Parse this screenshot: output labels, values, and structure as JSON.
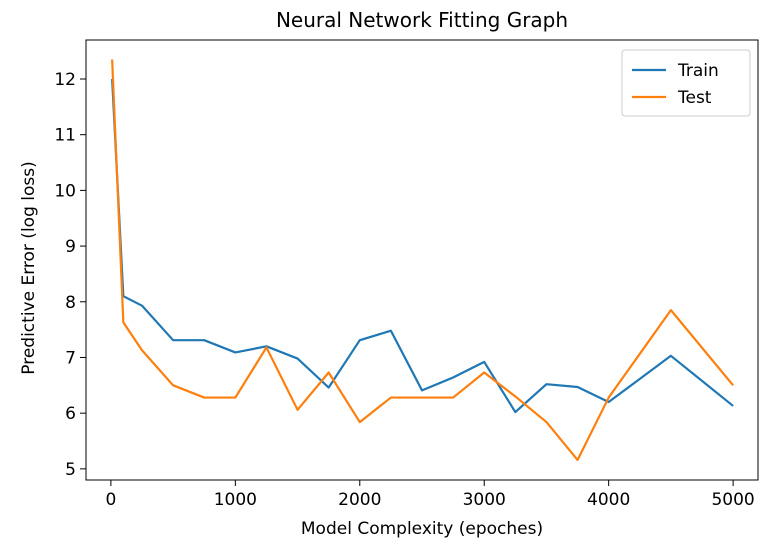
{
  "chart_data": {
    "type": "line",
    "title": "Neural Network Fitting Graph",
    "xlabel": "Model Complexity (epoches)",
    "ylabel": "Predictive Error (log loss)",
    "xlim": [
      -200,
      5200
    ],
    "ylim": [
      4.8,
      12.7
    ],
    "xticks": [
      0,
      1000,
      2000,
      3000,
      4000,
      5000
    ],
    "yticks": [
      5,
      6,
      7,
      8,
      9,
      10,
      11,
      12
    ],
    "grid": false,
    "legend": "top-right",
    "series": [
      {
        "name": "Train",
        "color": "#1f77b4",
        "x": [
          10,
          100,
          250,
          500,
          750,
          1000,
          1250,
          1500,
          1750,
          2000,
          2250,
          2500,
          2750,
          3000,
          3250,
          3500,
          3750,
          4000,
          4500,
          5000
        ],
        "y": [
          12.0,
          8.1,
          7.93,
          7.31,
          7.31,
          7.09,
          7.2,
          6.98,
          6.46,
          7.31,
          7.48,
          6.41,
          6.64,
          6.92,
          6.02,
          6.52,
          6.47,
          6.2,
          7.03,
          6.13
        ]
      },
      {
        "name": "Test",
        "color": "#ff7f0e",
        "x": [
          10,
          100,
          250,
          500,
          750,
          1000,
          1250,
          1500,
          1750,
          2000,
          2250,
          2500,
          2750,
          3000,
          3250,
          3500,
          3750,
          4000,
          4500,
          5000
        ],
        "y": [
          12.35,
          7.63,
          7.13,
          6.5,
          6.28,
          6.28,
          7.18,
          6.06,
          6.73,
          5.84,
          6.28,
          6.28,
          6.28,
          6.73,
          6.3,
          5.84,
          5.16,
          6.28,
          7.85,
          6.5
        ]
      }
    ]
  }
}
